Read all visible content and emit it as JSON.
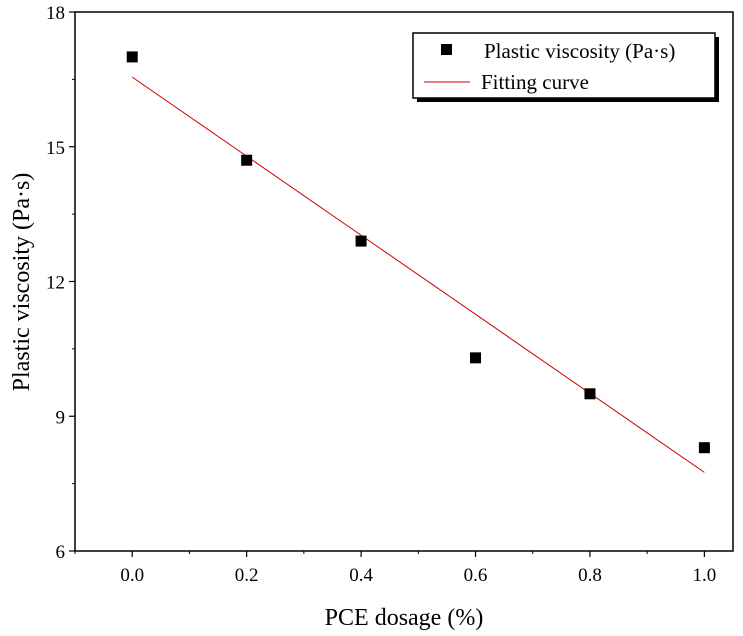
{
  "chart_data": {
    "type": "scatter",
    "xlabel": "PCE dosage (%)",
    "ylabel": "Plastic viscosity (Pa·s)",
    "xlim": [
      -0.1,
      1.05
    ],
    "ylim": [
      6,
      18
    ],
    "xticks": [
      0.0,
      0.2,
      0.4,
      0.6,
      0.8,
      1.0
    ],
    "xtick_labels": [
      "0.0",
      "0.2",
      "0.4",
      "0.6",
      "0.8",
      "1.0"
    ],
    "yticks": [
      6,
      9,
      12,
      15,
      18
    ],
    "ytick_labels": [
      "6",
      "9",
      "12",
      "15",
      "18"
    ],
    "grid": false,
    "legend_position": "top-right",
    "series": [
      {
        "name": "Plastic viscosity (Pa·s)",
        "kind": "scatter",
        "marker": "square",
        "color": "#000000",
        "x": [
          0.0,
          0.2,
          0.4,
          0.6,
          0.8,
          1.0
        ],
        "y": [
          17.0,
          14.7,
          12.9,
          10.3,
          9.5,
          8.3
        ]
      },
      {
        "name": "Fitting curve",
        "kind": "line",
        "color": "#cc0000",
        "x": [
          0.0,
          1.0
        ],
        "y": [
          16.55,
          7.75
        ]
      }
    ]
  }
}
